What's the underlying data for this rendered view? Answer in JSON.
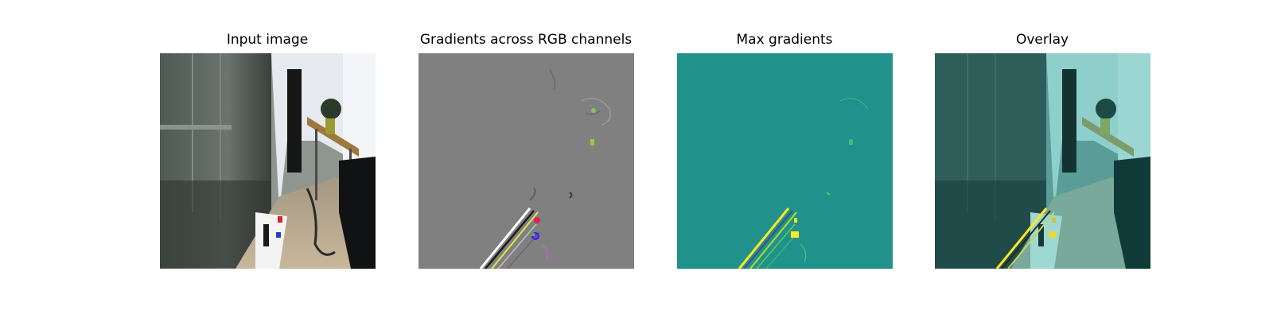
{
  "panels": [
    {
      "title": "Input image"
    },
    {
      "title": "Gradients across RGB channels"
    },
    {
      "title": "Max gradients"
    },
    {
      "title": "Overlay"
    }
  ],
  "colors": {
    "gradient_background": "#808080",
    "max_gradient_background": "#21918c",
    "max_gradient_high": "#fde725",
    "overlay_tint": "#4fbfb8"
  }
}
